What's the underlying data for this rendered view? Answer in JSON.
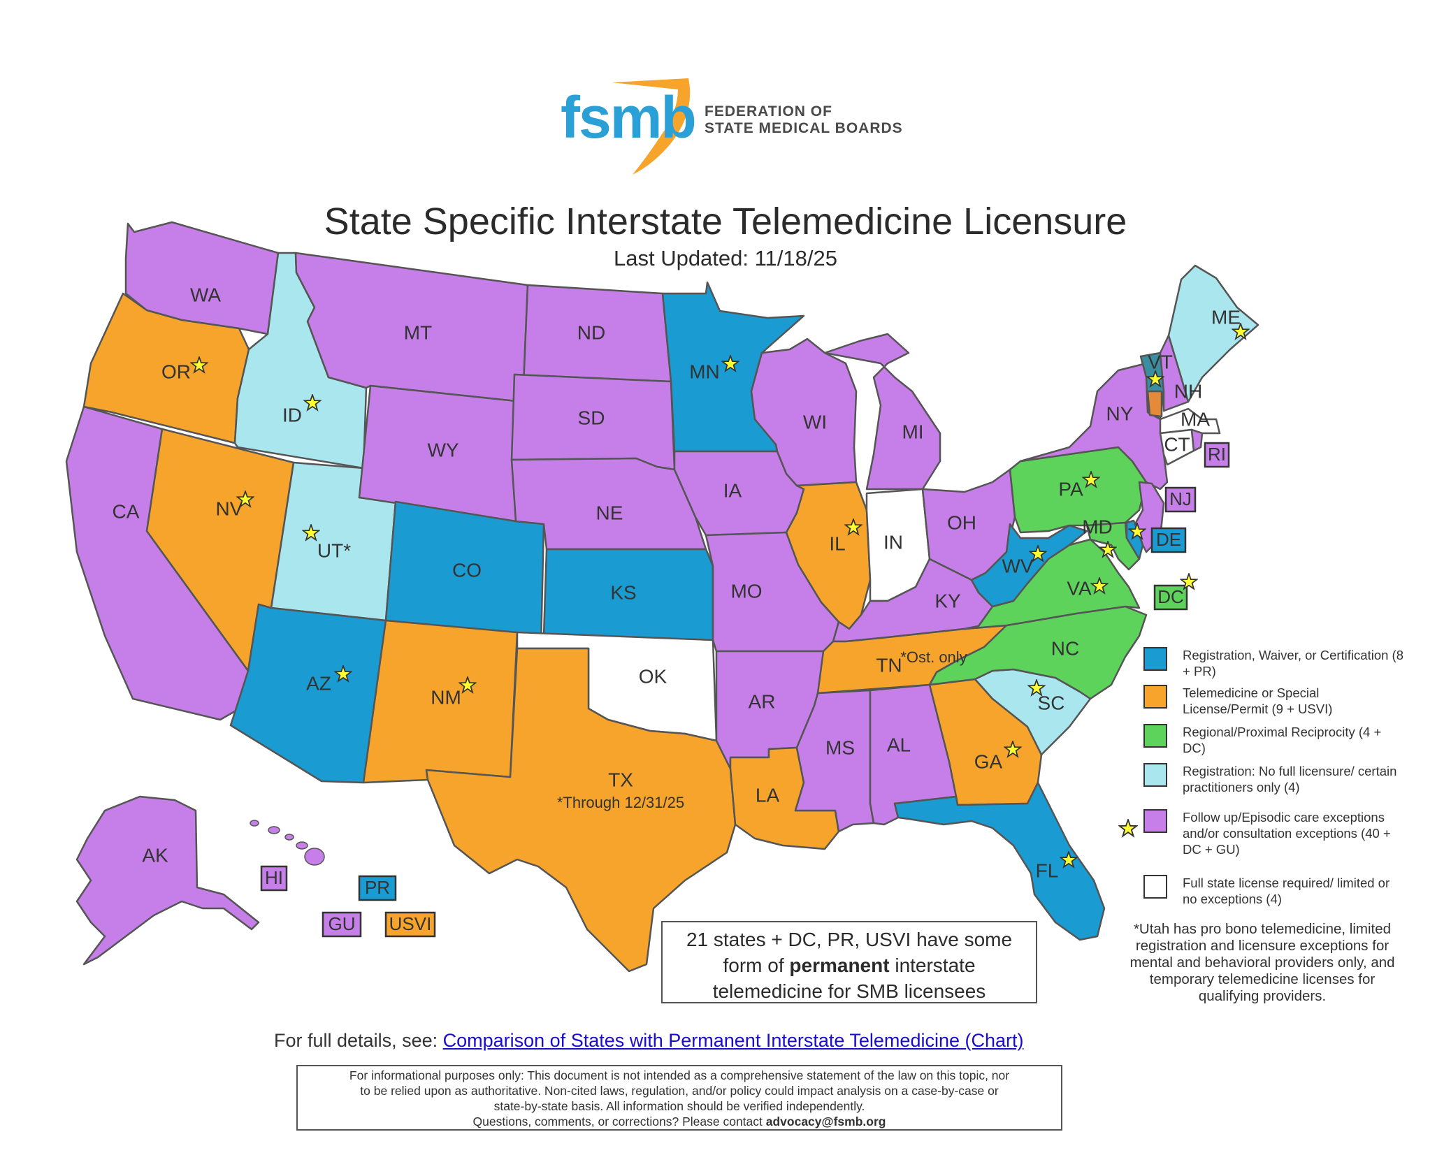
{
  "header": {
    "logo_text": "fsmb",
    "logo_sub1": "FEDERATION OF",
    "logo_sub2": "STATE MEDICAL BOARDS",
    "title": "State Specific Interstate Telemedicine Licensure",
    "updated": "Last Updated: 11/18/25"
  },
  "colors": {
    "blue": "#1a9bd1",
    "orange": "#f6a42b",
    "green": "#5ed35c",
    "lightblue": "#a9e6ee",
    "purple": "#c67fe8",
    "white": "#ffffff",
    "star": "#ffff33",
    "logo_orange": "#f6a42b",
    "logo_blue": "#2aa0d6"
  },
  "states": {
    "WA": "WA",
    "OR": "OR",
    "CA": "CA",
    "ID": "ID",
    "NV": "NV",
    "UT": "UT*",
    "AZ": "AZ",
    "MT": "MT",
    "WY": "WY",
    "CO": "CO",
    "NM": "NM",
    "ND": "ND",
    "SD": "SD",
    "NE": "NE",
    "KS": "KS",
    "OK": "OK",
    "TX": "TX",
    "MN": "MN",
    "IA": "IA",
    "MO": "MO",
    "AR": "AR",
    "LA": "LA",
    "WI": "WI",
    "IL": "IL",
    "MI": "MI",
    "IN": "IN",
    "OH": "OH",
    "KY": "KY",
    "TN": "TN",
    "MS": "MS",
    "AL": "AL",
    "GA": "GA",
    "FL": "FL",
    "SC": "SC",
    "NC": "NC",
    "VA": "VA",
    "WV": "WV",
    "PA": "PA",
    "NY": "NY",
    "MD": "MD",
    "DE": "DE",
    "NJ": "NJ",
    "CT": "CT",
    "RI": "RI",
    "MA": "MA",
    "VT": "VT",
    "NH": "NH",
    "ME": "ME",
    "DC": "DC",
    "AK": "AK",
    "HI": "HI",
    "PR": "PR",
    "GU": "GU",
    "USVI": "USVI"
  },
  "notes": {
    "tn": "*Ost. only",
    "tx": "*Through 12/31/25"
  },
  "legend": [
    {
      "label": "Registration, Waiver, or Certification (8 + PR)",
      "color": "#1a9bd1",
      "star": false
    },
    {
      "label": "Telemedicine or Special License/Permit (9 + USVI)",
      "color": "#f6a42b",
      "star": false
    },
    {
      "label": "Regional/Proximal Reciprocity (4 + DC)",
      "color": "#5ed35c",
      "star": false
    },
    {
      "label": "Registration: No full licensure/ certain practitioners only (4)",
      "color": "#a9e6ee",
      "star": false
    },
    {
      "label": "Follow up/Episodic care exceptions and/or consultation exceptions (40 + DC + GU)",
      "color": "#c67fe8",
      "star": true
    },
    {
      "label": "Full state license required/ limited or no exceptions (4)",
      "color": "#ffffff",
      "star": false
    }
  ],
  "permanent_box": {
    "line1": "21 states + DC, PR, USVI have some",
    "line2_pre": "form of ",
    "line2_bold": "permanent",
    "line2_post": " interstate",
    "line3": "telemedicine for SMB licensees"
  },
  "utah_note": "*Utah has pro bono telemedicine, limited registration and licensure exceptions for mental and behavioral providers only, and temporary telemedicine licenses for qualifying providers.",
  "full_details": {
    "prefix": "For full details, see: ",
    "link": "Comparison of States with Permanent Interstate Telemedicine (Chart)"
  },
  "disclaimer": {
    "line1": "For informational purposes only: This document is not intended as a comprehensive statement of the law on this topic, nor",
    "line2": "to be relied upon as authoritative. Non-cited laws, regulation, and/or policy could impact analysis on a case-by-case or",
    "line3": "state-by-state basis. All information should be verified independently.",
    "line4_pre": "Questions, comments, or corrections? Please contact ",
    "line4_email": "advocacy@fsmb.org"
  }
}
